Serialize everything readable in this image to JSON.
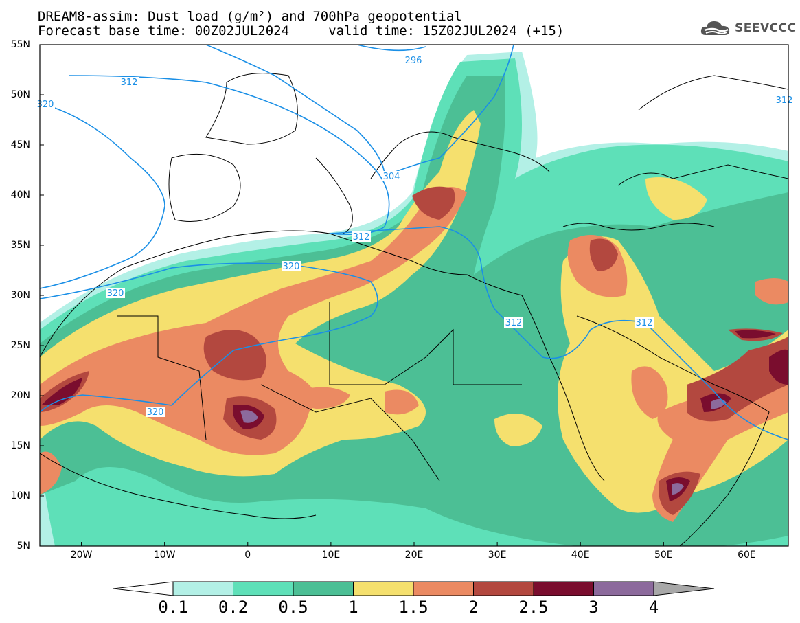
{
  "title": {
    "line1": "DREAM8-assim: Dust load (g/m²) and 700hPa geopotential",
    "line2": "Forecast base time: 00Z02JUL2024     valid time: 15Z02JUL2024 (+15)"
  },
  "logo": {
    "icon": "cloud-icon",
    "text": "SEEVCCC"
  },
  "axes": {
    "lat_labels": [
      "55N",
      "50N",
      "45N",
      "40N",
      "35N",
      "30N",
      "25N",
      "20N",
      "15N",
      "10N",
      "5N"
    ],
    "lon_labels": [
      "20W",
      "10W",
      "0",
      "10E",
      "20E",
      "30E",
      "40E",
      "50E",
      "60E"
    ],
    "lat_range": [
      5,
      55
    ],
    "lon_range": [
      -25,
      65
    ]
  },
  "colorbar": {
    "ticks": [
      "0.1",
      "0.2",
      "0.5",
      "1",
      "1.5",
      "2",
      "2.5",
      "3",
      "4"
    ],
    "colors": [
      "#b3f0e6",
      "#5ee0b8",
      "#4cbf95",
      "#f5e06e",
      "#eb8a62",
      "#b3483f",
      "#7a0d2e",
      "#8c6a9c"
    ],
    "low_extend_color": "#ffffff",
    "high_extend_color": "#a8a8a8"
  },
  "contours": {
    "color": "#1a8fe6",
    "labels": [
      "296",
      "312",
      "320",
      "304",
      "312",
      "320",
      "320",
      "312",
      "312",
      "320",
      "312"
    ]
  }
}
